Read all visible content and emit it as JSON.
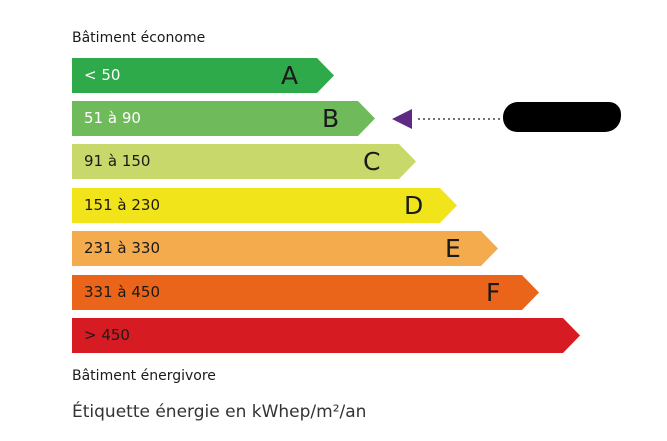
{
  "top_label": "Bâtiment économe",
  "bottom_label": "Bâtiment énergivore",
  "caption": "Étiquette énergie en kWhep/m²/an",
  "classes": [
    {
      "letter": "A",
      "range": "< 50",
      "color": "#2eaa4a",
      "text_color": "#ffffff"
    },
    {
      "letter": "B",
      "range": "51 à 90",
      "color": "#6fba5a",
      "text_color": "#ffffff"
    },
    {
      "letter": "C",
      "range": "91 à 150",
      "color": "#c8d86a",
      "text_color": "#1a1a1a"
    },
    {
      "letter": "D",
      "range": "151 à 230",
      "color": "#f2e41b",
      "text_color": "#1a1a1a"
    },
    {
      "letter": "E",
      "range": "231 à 330",
      "color": "#f4ab4e",
      "text_color": "#1a1a1a"
    },
    {
      "letter": "F",
      "range": "331 à 450",
      "color": "#ea6419",
      "text_color": "#1a1a1a"
    },
    {
      "letter": "",
      "range": "> 450",
      "color": "#d71b22",
      "text_color": "#1a1a1a"
    }
  ],
  "indicator": {
    "class": "B",
    "color": "#5e2a84",
    "value_redacted": true
  }
}
